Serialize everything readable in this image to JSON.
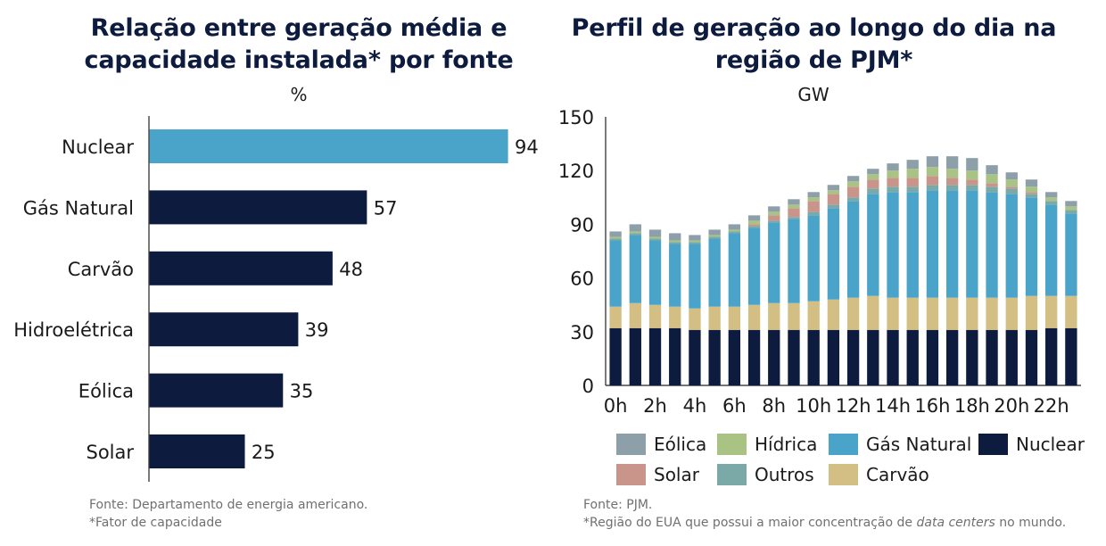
{
  "colors": {
    "navy": "#0d1b3e",
    "nuclear_highlight": "#4aa3c9",
    "nuclear": "#0d1b3e",
    "gas": "#4aa3c9",
    "coal": "#d3bf84",
    "hydro": "#a9c384",
    "wind": "#8d9fa9",
    "solar": "#c9958a",
    "other": "#7aa9a8"
  },
  "left": {
    "title_line1": "Relação entre geração média e",
    "title_line2": "capacidade instalada* por fonte",
    "unit": "%",
    "source": "Fonte: Departamento de energia americano.",
    "note": "*Fator de capacidade"
  },
  "right": {
    "title_line1": "Perfil de geração ao longo do dia na",
    "title_line2": "região de PJM*",
    "unit": "GW",
    "source": "Fonte: PJM.",
    "note_before": "*Região do EUA que possui a maior concentração de ",
    "note_italic": "data centers",
    "note_after": " no mundo."
  },
  "chart_data": [
    {
      "type": "bar",
      "orientation": "horizontal",
      "title": "Relação entre geração média e capacidade instalada* por fonte",
      "ylabel": "%",
      "categories": [
        "Nuclear",
        "Gás Natural",
        "Carvão",
        "Hidroelétrica",
        "Eólica",
        "Solar"
      ],
      "values": [
        94,
        57,
        48,
        39,
        35,
        25
      ],
      "highlight": "Nuclear",
      "xlim": [
        0,
        100
      ]
    },
    {
      "type": "bar",
      "stacked": true,
      "title": "Perfil de geração ao longo do dia na região de PJM*",
      "ylabel": "GW",
      "ylim": [
        0,
        150
      ],
      "yticks": [
        0,
        30,
        60,
        90,
        120,
        150
      ],
      "x": [
        "0h",
        "1h",
        "2h",
        "3h",
        "4h",
        "5h",
        "6h",
        "7h",
        "8h",
        "9h",
        "10h",
        "11h",
        "12h",
        "13h",
        "14h",
        "15h",
        "16h",
        "17h",
        "18h",
        "19h",
        "20h",
        "21h",
        "22h",
        "23h"
      ],
      "xtick_labels": [
        "0h",
        "2h",
        "4h",
        "6h",
        "8h",
        "10h",
        "12h",
        "14h",
        "16h",
        "18h",
        "20h",
        "22h"
      ],
      "legend": {
        "position": "bottom",
        "rows": [
          [
            "Eólica",
            "Hídrica",
            "Gás Natural",
            "Nuclear"
          ],
          [
            "Solar",
            "Outros",
            "Carvão"
          ]
        ]
      },
      "series": [
        {
          "name": "Nuclear",
          "color_key": "nuclear",
          "values": [
            32,
            32,
            32,
            32,
            31,
            31,
            31,
            31,
            31,
            31,
            31,
            31,
            31,
            31,
            31,
            31,
            31,
            31,
            31,
            31,
            31,
            31,
            32,
            32
          ]
        },
        {
          "name": "Carvão",
          "color_key": "coal",
          "values": [
            12,
            14,
            13,
            12,
            12,
            13,
            13,
            14,
            15,
            15,
            16,
            17,
            18,
            19,
            18,
            18,
            18,
            18,
            18,
            18,
            18,
            19,
            18,
            18
          ]
        },
        {
          "name": "Gás Natural",
          "color_key": "gas",
          "values": [
            37,
            38,
            36,
            35,
            36,
            38,
            41,
            43,
            45,
            47,
            48,
            51,
            54,
            57,
            59,
            59,
            60,
            60,
            60,
            59,
            58,
            55,
            51,
            46
          ]
        },
        {
          "name": "Outros",
          "color_key": "other",
          "values": [
            1,
            1,
            1,
            1,
            1,
            1,
            1,
            1,
            1,
            1,
            2,
            2,
            2,
            3,
            3,
            3,
            3,
            3,
            3,
            3,
            3,
            2,
            2,
            2
          ]
        },
        {
          "name": "Solar",
          "color_key": "solar",
          "values": [
            0,
            0,
            0,
            0,
            0,
            0,
            0,
            1,
            3,
            5,
            6,
            6,
            6,
            5,
            5,
            5,
            5,
            4,
            3,
            2,
            1,
            1,
            0,
            0
          ]
        },
        {
          "name": "Hídrica",
          "color_key": "hydro",
          "values": [
            1,
            1,
            1,
            1,
            1,
            1,
            1,
            2,
            2,
            2,
            2,
            2,
            3,
            3,
            4,
            5,
            5,
            5,
            5,
            5,
            4,
            3,
            2,
            2
          ]
        },
        {
          "name": "Eólica",
          "color_key": "wind",
          "values": [
            3,
            4,
            4,
            4,
            3,
            3,
            3,
            3,
            3,
            3,
            3,
            3,
            3,
            3,
            4,
            5,
            6,
            7,
            7,
            5,
            4,
            4,
            3,
            3
          ]
        }
      ]
    }
  ]
}
